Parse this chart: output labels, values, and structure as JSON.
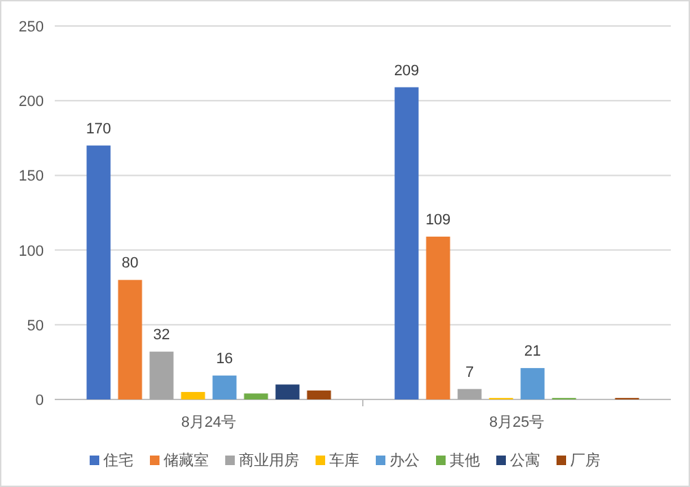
{
  "chart_data": {
    "type": "bar",
    "categories": [
      "8月24号",
      "8月25号"
    ],
    "series": [
      {
        "name": "住宅",
        "color": "#4472c4",
        "values": [
          170,
          209
        ],
        "value_labels": [
          "170",
          "209"
        ]
      },
      {
        "name": "储藏室",
        "color": "#ed7d31",
        "values": [
          80,
          109
        ],
        "value_labels": [
          "80",
          "109"
        ]
      },
      {
        "name": "商业用房",
        "color": "#a5a5a5",
        "values": [
          32,
          7
        ],
        "value_labels": [
          "32",
          "7"
        ]
      },
      {
        "name": "车库",
        "color": "#ffc000",
        "values": [
          5,
          1
        ],
        "value_labels": [
          null,
          null
        ]
      },
      {
        "name": "办公",
        "color": "#5b9bd5",
        "values": [
          16,
          21
        ],
        "value_labels": [
          "16",
          "21"
        ]
      },
      {
        "name": "其他",
        "color": "#70ad47",
        "values": [
          4,
          1
        ],
        "value_labels": [
          null,
          null
        ]
      },
      {
        "name": "公寓",
        "color": "#264478",
        "values": [
          10,
          0
        ],
        "value_labels": [
          null,
          null
        ]
      },
      {
        "name": "厂房",
        "color": "#9e480e",
        "values": [
          6,
          1
        ],
        "value_labels": [
          null,
          null
        ]
      }
    ],
    "ylim": [
      0,
      250
    ],
    "yticks": [
      0,
      50,
      100,
      150,
      200,
      250
    ],
    "grid": "y",
    "legend": "bottom"
  }
}
